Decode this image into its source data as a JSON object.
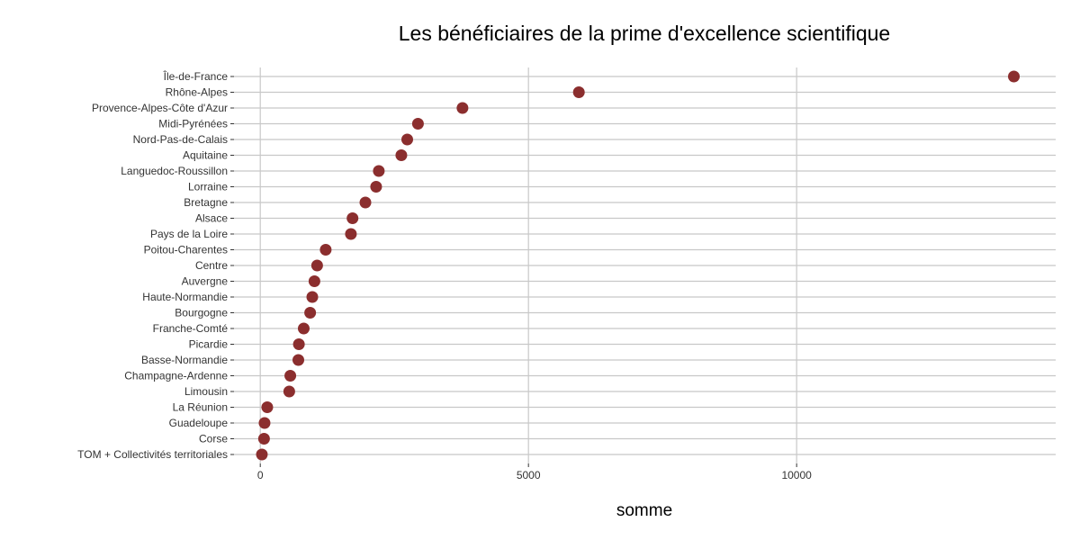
{
  "chart_data": {
    "type": "scatter",
    "title": "Les bénéficiaires de la prime d'excellence scientifique",
    "xlabel": "somme",
    "ylabel": "",
    "xlim": [
      -490,
      14830
    ],
    "xticks": [
      0,
      5000,
      10000
    ],
    "xtick_labels": [
      "0",
      "5000",
      "10000"
    ],
    "grid": true,
    "point_color": "#8b2e2e",
    "grid_color": "#c8c8c8",
    "categories": [
      "Île-de-France",
      "Rhône-Alpes",
      "Provence-Alpes-Côte d'Azur",
      "Midi-Pyrénées",
      "Nord-Pas-de-Calais",
      "Aquitaine",
      "Languedoc-Roussillon",
      "Lorraine",
      "Bretagne",
      "Alsace",
      "Pays de la Loire",
      "Poitou-Charentes",
      "Centre",
      "Auvergne",
      "Haute-Normandie",
      "Bourgogne",
      "Franche-Comté",
      "Picardie",
      "Basse-Normandie",
      "Champagne-Ardenne",
      "Limousin",
      "La Réunion",
      "Guadeloupe",
      "Corse",
      "TOM + Collectivités territoriales"
    ],
    "values": [
      14050,
      5940,
      3770,
      2940,
      2740,
      2630,
      2210,
      2160,
      1960,
      1720,
      1690,
      1220,
      1060,
      1010,
      970,
      930,
      810,
      720,
      710,
      560,
      540,
      130,
      80,
      70,
      30
    ]
  }
}
